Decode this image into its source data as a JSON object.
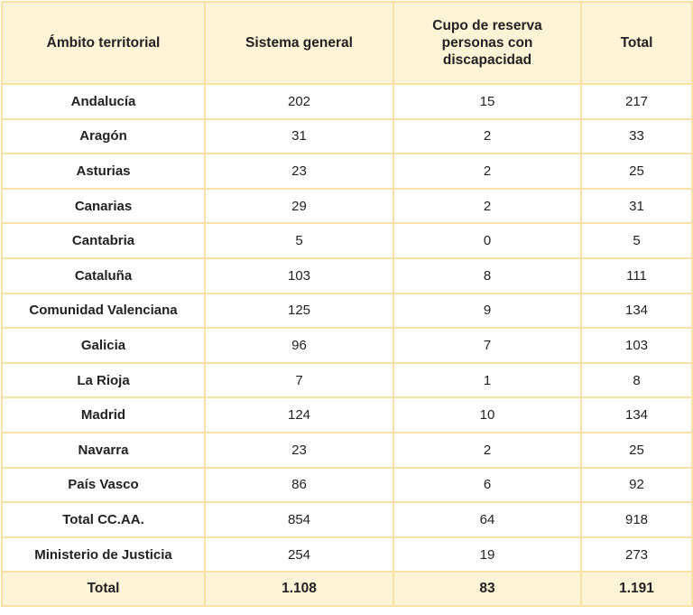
{
  "table": {
    "headers": {
      "region": "Ámbito territorial",
      "general": "Sistema general",
      "reserve": "Cupo de reserva personas con discapacidad",
      "total": "Total"
    },
    "rows": [
      {
        "region": "Andalucía",
        "general": "202",
        "reserve": "15",
        "total": "217"
      },
      {
        "region": "Aragón",
        "general": "31",
        "reserve": "2",
        "total": "33"
      },
      {
        "region": "Asturias",
        "general": "23",
        "reserve": "2",
        "total": "25"
      },
      {
        "region": "Canarias",
        "general": "29",
        "reserve": "2",
        "total": "31"
      },
      {
        "region": "Cantabria",
        "general": "5",
        "reserve": "0",
        "total": "5"
      },
      {
        "region": "Cataluña",
        "general": "103",
        "reserve": "8",
        "total": "111"
      },
      {
        "region": "Comunidad Valenciana",
        "general": "125",
        "reserve": "9",
        "total": "134"
      },
      {
        "region": "Galicia",
        "general": "96",
        "reserve": "7",
        "total": "103"
      },
      {
        "region": "La Rioja",
        "general": "7",
        "reserve": "1",
        "total": "8"
      },
      {
        "region": "Madrid",
        "general": "124",
        "reserve": "10",
        "total": "134"
      },
      {
        "region": "Navarra",
        "general": "23",
        "reserve": "2",
        "total": "25"
      },
      {
        "region": "País Vasco",
        "general": "86",
        "reserve": "6",
        "total": "92"
      },
      {
        "region": "Total CC.AA.",
        "general": "854",
        "reserve": "64",
        "total": "918"
      },
      {
        "region": "Ministerio de Justicia",
        "general": "254",
        "reserve": "19",
        "total": "273"
      }
    ],
    "footer": {
      "region": "Total",
      "general": "1.108",
      "reserve": "83",
      "total": "1.191"
    },
    "colors": {
      "border": "#f6e2a4",
      "header_background": "#fdf3d6",
      "row_background": "#ffffff"
    }
  }
}
